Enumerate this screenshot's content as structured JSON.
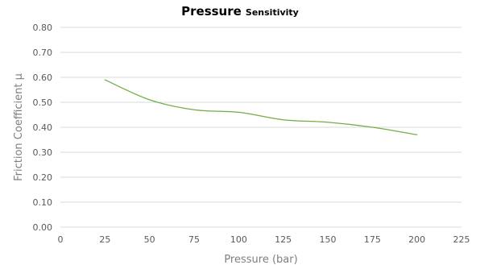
{
  "chart_data": {
    "type": "line",
    "title": "Pressure",
    "subtitle": "Sensitivity",
    "xlabel": "Pressure  (bar)",
    "ylabel": "Friction Coefficient μ",
    "xlim": [
      0,
      225
    ],
    "ylim": [
      0,
      0.8
    ],
    "x_ticks": [
      "0",
      "25",
      "50",
      "75",
      "100",
      "125",
      "150",
      "175",
      "200",
      "225"
    ],
    "y_ticks": [
      "0.00",
      "0.10",
      "0.20",
      "0.30",
      "0.40",
      "0.50",
      "0.60",
      "0.70",
      "0.80"
    ],
    "grid": "horizontal",
    "legend": "none",
    "series": [
      {
        "x": [
          25,
          50,
          75,
          100,
          125,
          150,
          175,
          200
        ],
        "y": [
          0.59,
          0.51,
          0.47,
          0.46,
          0.43,
          0.42,
          0.4,
          0.37
        ],
        "color": "#70ad47"
      }
    ],
    "colors": {
      "line": "#70ad47",
      "grid": "#d9d9d9",
      "tick_text": "#595959",
      "axis_title": "#7f7f7f"
    }
  }
}
